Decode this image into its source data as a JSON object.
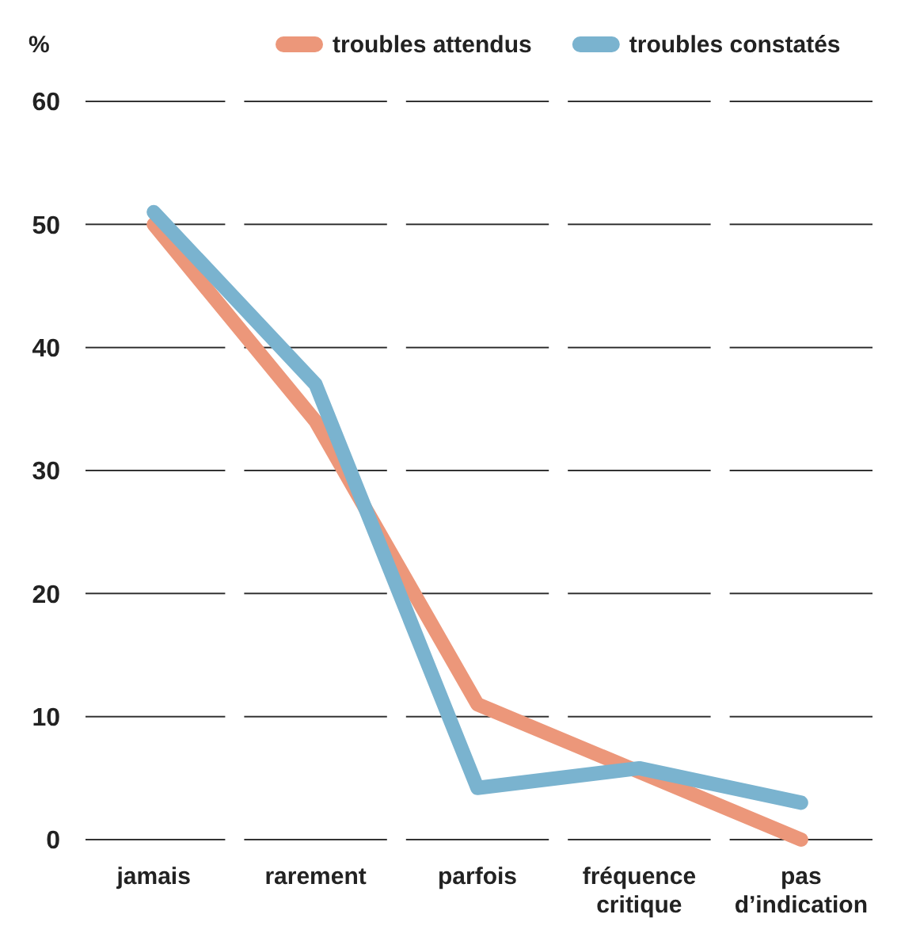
{
  "chart_data": {
    "type": "line",
    "ylabel": "%",
    "categories": [
      "jamais",
      "rarement",
      "parfois",
      "fréquence critique",
      "pas d’indication"
    ],
    "series": [
      {
        "name": "troubles attendus",
        "color": "#ec977a",
        "values": [
          50,
          34,
          11,
          5.5,
          0
        ]
      },
      {
        "name": "troubles constatés",
        "color": "#7ab3cf",
        "values": [
          51,
          37,
          4.2,
          5.8,
          3
        ]
      }
    ],
    "ylim": [
      0,
      60
    ],
    "yticks": [
      0,
      10,
      20,
      30,
      40,
      50,
      60
    ],
    "grid": "y",
    "legend": "top right",
    "marker": "none",
    "line_style": "solid"
  }
}
